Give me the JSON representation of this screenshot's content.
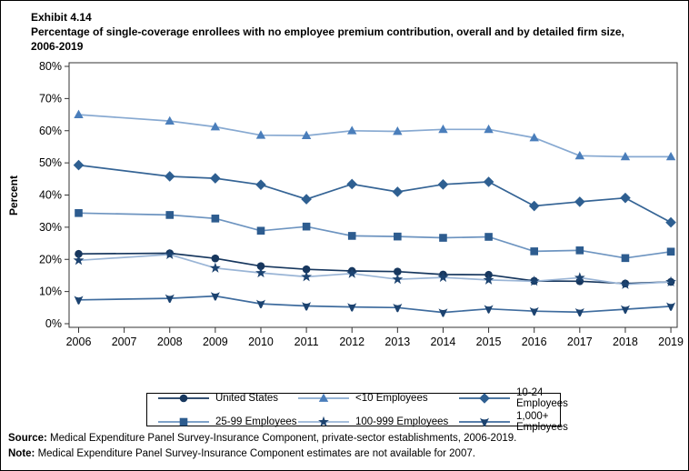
{
  "header": {
    "exhibit": "Exhibit 4.14",
    "title_line1": "Percentage of single-coverage enrollees with no employee premium contribution, overall and by detailed firm size,",
    "title_line2": "2006-2019"
  },
  "chart_data": {
    "type": "line",
    "title": "Percentage of single-coverage enrollees with no employee premium contribution, overall and by detailed firm size, 2006-2019",
    "xlabel": "",
    "ylabel": "Percent",
    "ylim": [
      0,
      80
    ],
    "yticks": [
      0,
      10,
      20,
      30,
      40,
      50,
      60,
      70,
      80
    ],
    "ytick_suffix": "%",
    "xticks": [
      2006,
      2007,
      2008,
      2009,
      2010,
      2011,
      2012,
      2013,
      2014,
      2015,
      2016,
      2017,
      2018,
      2019
    ],
    "x": [
      2006,
      2008,
      2009,
      2010,
      2011,
      2012,
      2013,
      2014,
      2015,
      2016,
      2017,
      2018,
      2019
    ],
    "missing_years": [
      2007
    ],
    "grid": false,
    "legend_position": "bottom",
    "frame_color": "#333333",
    "series": [
      {
        "name": "United States",
        "marker": "circle",
        "color": "#17375E",
        "line_color": "#17375E",
        "values": [
          21.7,
          21.9,
          20.3,
          17.9,
          16.9,
          16.4,
          16.2,
          15.3,
          15.2,
          13.3,
          13.2,
          12.5,
          13.0
        ]
      },
      {
        "name": "<10 Employees",
        "marker": "triangle",
        "color": "#4A7EBB",
        "line_color": "#87A9D1",
        "values": [
          65.0,
          63.0,
          61.2,
          58.6,
          58.5,
          60.0,
          59.8,
          60.4,
          60.4,
          57.8,
          52.2,
          51.9,
          51.9
        ]
      },
      {
        "name": "10-24 Employees",
        "marker": "diamond",
        "color": "#2E5F91",
        "line_color": "#356495",
        "values": [
          49.3,
          45.8,
          45.2,
          43.2,
          38.7,
          43.4,
          41.0,
          43.3,
          44.1,
          36.6,
          37.9,
          39.1,
          31.5
        ]
      },
      {
        "name": "25-99 Employees",
        "marker": "square",
        "color": "#2D5C8F",
        "line_color": "#6D94C0",
        "values": [
          34.4,
          33.8,
          32.7,
          28.9,
          30.2,
          27.3,
          27.1,
          26.7,
          27.0,
          22.5,
          22.8,
          20.4,
          22.4
        ]
      },
      {
        "name": "100-999 Employees",
        "marker": "star",
        "color": "#1C4370",
        "line_color": "#9AB5D6",
        "values": [
          19.7,
          21.5,
          17.3,
          15.8,
          14.6,
          15.6,
          13.8,
          14.4,
          13.6,
          13.2,
          14.3,
          12.2,
          13.0
        ]
      },
      {
        "name": "1,000+ Employees",
        "marker": "pointer-down",
        "color": "#1C4370",
        "line_color": "#3F6C9E",
        "values": [
          7.4,
          7.9,
          8.6,
          6.2,
          5.5,
          5.2,
          5.0,
          3.5,
          4.6,
          3.9,
          3.6,
          4.5,
          5.4
        ]
      }
    ]
  },
  "footer": {
    "source_label": "Source:",
    "source_text": " Medical Expenditure Panel Survey-Insurance Component, private-sector establishments, 2006-2019.",
    "note_label": "Note:",
    "note_text": " Medical Expenditure Panel Survey-Insurance Component estimates are not available for 2007."
  }
}
